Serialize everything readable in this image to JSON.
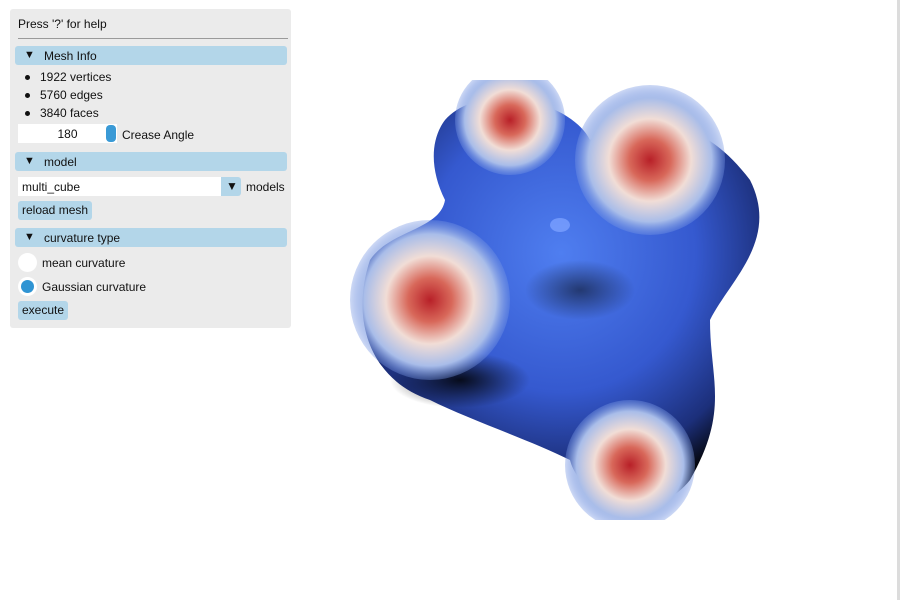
{
  "help_text": "Press '?' for help",
  "mesh_info": {
    "title": "Mesh Info",
    "stats": [
      "1922 vertices",
      "5760 edges",
      "3840 faces"
    ],
    "crease_angle_value": "180",
    "crease_angle_label": "Crease Angle"
  },
  "model": {
    "title": "model",
    "selected": "multi_cube",
    "combo_label": "models",
    "reload_label": "reload mesh"
  },
  "curvature": {
    "title": "curvature type",
    "options": [
      "mean curvature",
      "Gaussian curvature"
    ],
    "selected_index": 1,
    "execute_label": "execute"
  },
  "icons": {
    "collapse": "triangle-down-icon",
    "combo_arrow": "triangle-down-icon"
  },
  "colors": {
    "panel_bg": "#ebebeb",
    "header_bg": "#b3d6e9",
    "accent": "#2f94d3",
    "mesh_blue": "#3a62d8",
    "mesh_red": "#c0202a"
  }
}
